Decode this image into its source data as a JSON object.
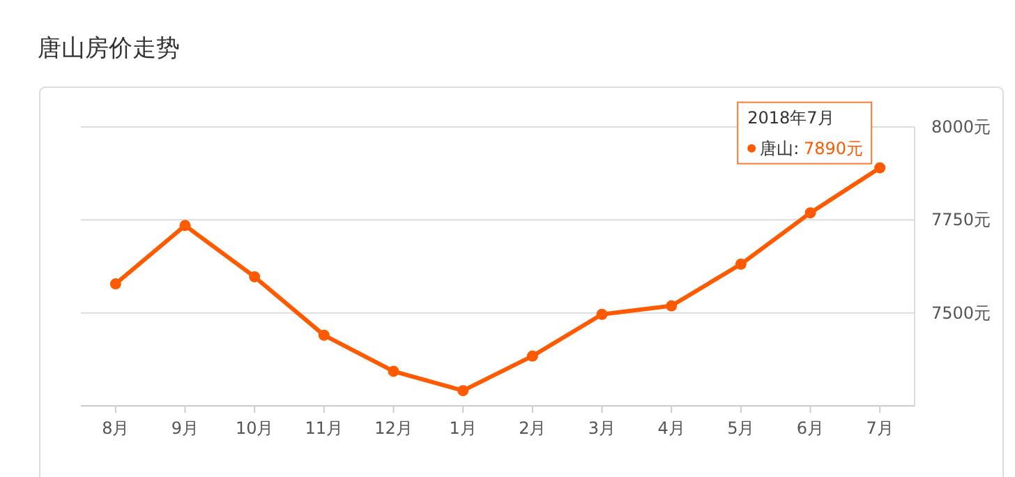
{
  "chart_data": {
    "type": "line",
    "title": "唐山房价走势",
    "categories": [
      "8月",
      "9月",
      "10月",
      "11月",
      "12月",
      "1月",
      "2月",
      "3月",
      "4月",
      "5月",
      "6月",
      "7月"
    ],
    "series": [
      {
        "name": "唐山:",
        "color": "#ff5a00",
        "values": [
          7578,
          7735,
          7597,
          7440,
          7343,
          7291,
          7384,
          7496,
          7519,
          7631,
          7769,
          7890
        ],
        "value_labels": [
          null,
          null,
          null,
          null,
          null,
          null,
          null,
          null,
          null,
          null,
          null,
          "7890元"
        ]
      }
    ],
    "ylim": [
      7250,
      8000
    ],
    "yticks": [
      {
        "value": 7500,
        "label": "7500元"
      },
      {
        "value": 7750,
        "label": "7750元"
      },
      {
        "value": 8000,
        "label": "8000元"
      }
    ],
    "grid": "y",
    "marker": "circle",
    "line_style": "solid",
    "annotations": [
      "2018年7月"
    ]
  }
}
